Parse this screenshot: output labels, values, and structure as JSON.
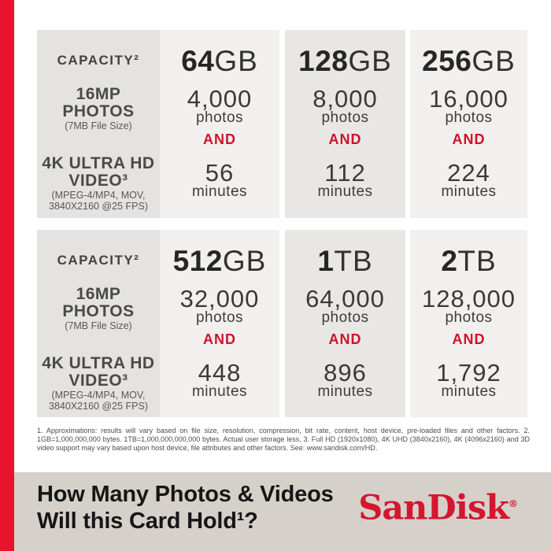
{
  "accent": {
    "stripe_red": "#e8132c",
    "and_red": "#d31128",
    "brand_red": "#d4162f",
    "footer_bg": "#d5d1ca"
  },
  "row_labels": {
    "capacity": "CAPACITY²",
    "photos_title_l1": "16MP",
    "photos_title_l2": "PHOTOS",
    "photos_sub": "(7MB File Size)",
    "video_title_l1": "4K ULTRA HD",
    "video_title_l2": "VIDEO³",
    "video_sub_l1": "(MPEG-4/MP4, MOV,",
    "video_sub_l2": "3840X2160 @25 FPS)"
  },
  "panels": [
    {
      "columns": [
        {
          "size_num": "64",
          "size_unit": "GB",
          "photos": "4,000",
          "photos_label": "photos",
          "and": "AND",
          "minutes": "56",
          "minutes_label": "minutes"
        },
        {
          "size_num": "128",
          "size_unit": "GB",
          "photos": "8,000",
          "photos_label": "photos",
          "and": "AND",
          "minutes": "112",
          "minutes_label": "minutes"
        },
        {
          "size_num": "256",
          "size_unit": "GB",
          "photos": "16,000",
          "photos_label": "photos",
          "and": "AND",
          "minutes": "224",
          "minutes_label": "minutes"
        }
      ]
    },
    {
      "columns": [
        {
          "size_num": "512",
          "size_unit": "GB",
          "photos": "32,000",
          "photos_label": "photos",
          "and": "AND",
          "minutes": "448",
          "minutes_label": "minutes"
        },
        {
          "size_num": "1",
          "size_unit": "TB",
          "photos": "64,000",
          "photos_label": "photos",
          "and": "AND",
          "minutes": "896",
          "minutes_label": "minutes"
        },
        {
          "size_num": "2",
          "size_unit": "TB",
          "photos": "128,000",
          "photos_label": "photos",
          "and": "AND",
          "minutes": "1,792",
          "minutes_label": "minutes"
        }
      ]
    }
  ],
  "disclaimer": "1. Approximations: results will vary based on file size, resolution, compression, bit rate, content, host device, pre-loaded files and other factors. 2. 1GB=1,000,000,000 bytes. 1TB=1,000,000,000,000 bytes. Actual user storage less. 3. Full HD (1920x1080), 4K UHD (3840x2160), 4K (4096x2160) and 3D video support may vary based upon host device, file attributes and other factors. See: www.sandisk.com/HD.",
  "footer": {
    "title_line1": "How Many Photos & Videos",
    "title_line2": "Will this Card Hold¹?",
    "brand": "SanDisk",
    "registered": "®"
  }
}
